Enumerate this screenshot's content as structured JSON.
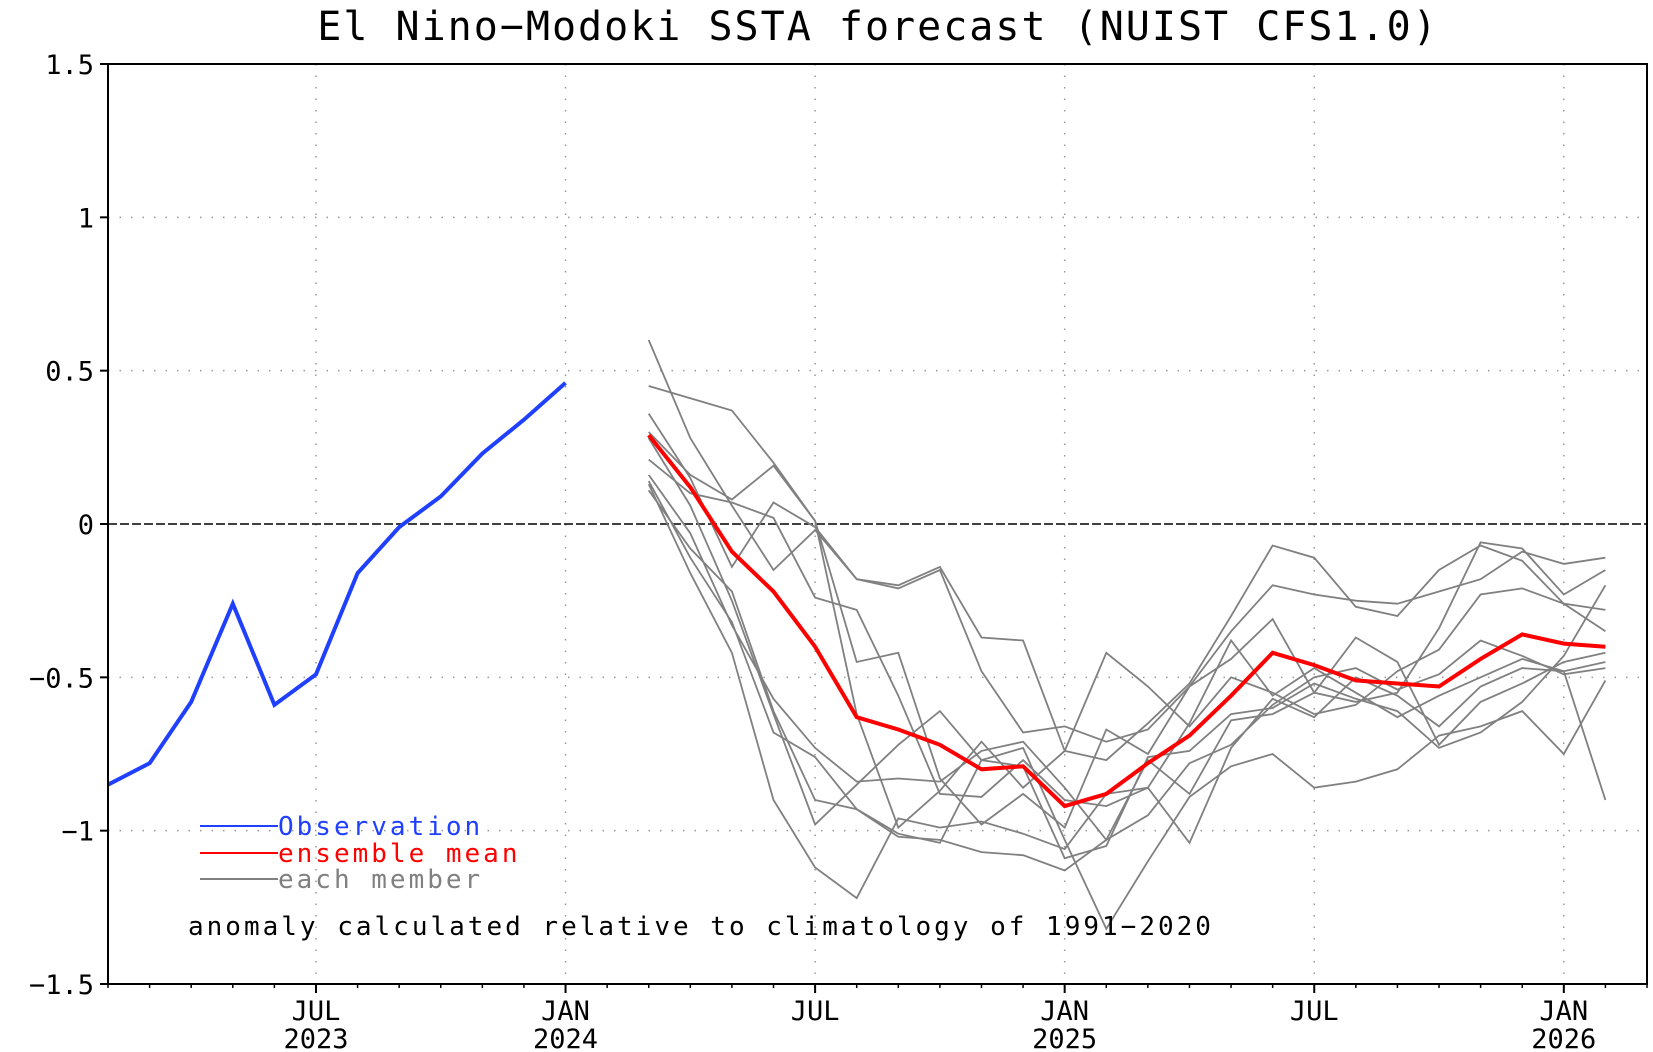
{
  "chart_data": {
    "type": "line",
    "title": "El Nino-Modoki SSTA forecast (NUIST CFS1.0)",
    "ylim": [
      -1.5,
      1.5
    ],
    "y_ticks": [
      {
        "value": 1.5,
        "label": "1.5"
      },
      {
        "value": 1,
        "label": "1"
      },
      {
        "value": 0.5,
        "label": "0.5"
      },
      {
        "value": 0,
        "label": "0"
      },
      {
        "value": -0.5,
        "label": "-0.5"
      },
      {
        "value": -1,
        "label": "-1"
      },
      {
        "value": -1.5,
        "label": "-1.5"
      }
    ],
    "xlim": [
      "2023-02",
      "2026-03"
    ],
    "x_ticks": [
      {
        "month": "2023-07",
        "line1": "JUL",
        "line2": "2023"
      },
      {
        "month": "2024-01",
        "line1": "JAN",
        "line2": "2024"
      },
      {
        "month": "2024-07",
        "line1": "JUL",
        "line2": ""
      },
      {
        "month": "2025-01",
        "line1": "JAN",
        "line2": "2025"
      },
      {
        "month": "2025-07",
        "line1": "JUL",
        "line2": ""
      },
      {
        "month": "2026-01",
        "line1": "JAN",
        "line2": "2026"
      }
    ],
    "grid": true,
    "zero_line": true,
    "legend_position": "bottom-left",
    "legend": [
      {
        "label": "Observation",
        "color": "#2040ff"
      },
      {
        "label": "ensemble mean",
        "color": "#ff0000"
      },
      {
        "label": "each member",
        "color": "#808080"
      }
    ],
    "annotation": "anomaly calculated relative to climatology of 1991-2020",
    "observation": {
      "name": "Observation",
      "color": "#2040ff",
      "start_month": "2023-02",
      "values": [
        -0.85,
        -0.78,
        -0.58,
        -0.26,
        -0.59,
        -0.49,
        -0.16,
        -0.01,
        0.09,
        0.23,
        0.34,
        0.46
      ]
    },
    "ensemble_mean": {
      "name": "ensemble mean",
      "color": "#ff0000",
      "start_month": "2024-03",
      "values": [
        0.29,
        0.12,
        -0.09,
        -0.22,
        -0.4,
        -0.63,
        -0.67,
        -0.72,
        -0.8,
        -0.79,
        -0.92,
        -0.88,
        -0.78,
        -0.69,
        -0.56,
        -0.42,
        -0.46,
        -0.51,
        -0.52,
        -0.53,
        -0.44,
        -0.36,
        -0.39,
        -0.4
      ]
    },
    "members": {
      "name": "each member",
      "color": "#808080",
      "start_month": "2024-03",
      "series": [
        [
          0.6,
          0.28,
          0.06,
          -0.15,
          -0.02,
          -0.18,
          -0.2,
          -0.14,
          -0.37,
          -0.38,
          -0.74,
          -0.77,
          -0.65,
          -0.52,
          -0.3,
          -0.07,
          -0.11,
          -0.27,
          -0.3,
          -0.15,
          -0.07,
          -0.12,
          -0.26,
          -0.28
        ],
        [
          0.45,
          0.41,
          0.37,
          0.2,
          0.01,
          -0.45,
          -0.42,
          -0.83,
          -0.98,
          -0.88,
          -0.99,
          -0.67,
          -0.75,
          -0.53,
          -0.35,
          -0.2,
          -0.23,
          -0.25,
          -0.26,
          -0.22,
          -0.18,
          -0.09,
          -0.13,
          -0.11
        ],
        [
          0.36,
          0.15,
          -0.14,
          0.07,
          -0.01,
          -0.18,
          -0.21,
          -0.15,
          -0.48,
          -0.68,
          -0.66,
          -0.71,
          -0.67,
          -0.53,
          -0.44,
          -0.31,
          -0.55,
          -0.37,
          -0.45,
          -0.72,
          -0.58,
          -0.52,
          -0.45,
          -0.42
        ],
        [
          0.3,
          0.16,
          0.08,
          0.19,
          0.01,
          -0.62,
          -0.99,
          -0.87,
          -0.71,
          -0.86,
          -0.74,
          -0.42,
          -0.53,
          -0.66,
          -0.5,
          -0.55,
          -0.62,
          -0.59,
          -0.48,
          -0.41,
          -0.23,
          -0.21,
          -0.26,
          -0.35
        ],
        [
          0.21,
          0.1,
          0.07,
          0.02,
          -0.24,
          -0.28,
          -0.56,
          -0.88,
          -0.89,
          -0.77,
          -0.9,
          -0.92,
          -0.86,
          -0.65,
          -0.38,
          -0.56,
          -0.47,
          -0.55,
          -0.63,
          -0.56,
          -0.5,
          -0.44,
          -0.48,
          -0.9
        ],
        [
          0.16,
          -0.03,
          -0.33,
          -0.57,
          -0.73,
          -0.84,
          -0.83,
          -0.84,
          -0.74,
          -0.71,
          -0.86,
          -1.03,
          -0.77,
          -0.88,
          -0.64,
          -0.62,
          -0.55,
          -0.58,
          -0.55,
          -0.34,
          -0.06,
          -0.08,
          -0.23,
          -0.15
        ],
        [
          0.13,
          -0.16,
          -0.42,
          -0.9,
          -1.12,
          -1.22,
          -0.96,
          -0.99,
          -0.97,
          -1.01,
          -1.06,
          -0.88,
          -0.86,
          -1.04,
          -0.73,
          -0.57,
          -0.63,
          -0.5,
          -0.56,
          -0.66,
          -0.53,
          -0.47,
          -0.48,
          -0.45
        ],
        [
          0.28,
          0.06,
          -0.25,
          -0.62,
          -0.98,
          -0.85,
          -0.72,
          -0.61,
          -0.77,
          -0.79,
          -1.09,
          -1.05,
          -0.76,
          -0.74,
          -0.62,
          -0.6,
          -0.52,
          -0.57,
          -0.61,
          -0.73,
          -0.68,
          -0.58,
          -0.43,
          -0.2
        ],
        [
          0.11,
          -0.08,
          -0.22,
          -0.61,
          -0.9,
          -0.93,
          -1.02,
          -1.03,
          -1.07,
          -1.08,
          -1.13,
          -1.03,
          -0.95,
          -0.78,
          -0.72,
          -0.59,
          -0.5,
          -0.47,
          -0.54,
          -0.49,
          -0.38,
          -0.43,
          -0.49,
          -0.47
        ],
        [
          0.14,
          -0.11,
          -0.32,
          -0.68,
          -0.76,
          -0.93,
          -1.01,
          -1.04,
          -0.77,
          -0.73,
          -1.03,
          -1.32,
          -1.1,
          -0.89,
          -0.79,
          -0.75,
          -0.86,
          -0.84,
          -0.8,
          -0.69,
          -0.66,
          -0.61,
          -0.75,
          -0.51
        ]
      ]
    }
  }
}
